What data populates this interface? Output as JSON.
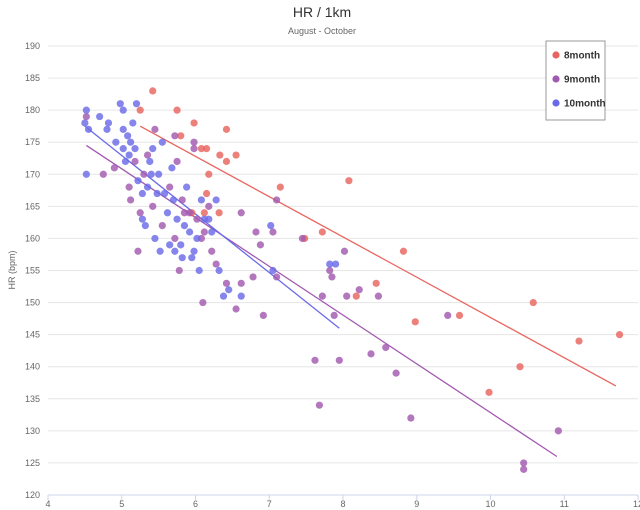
{
  "chart_data": {
    "type": "scatter",
    "title": "HR / 1km",
    "subtitle": "August - October",
    "xlabel": "",
    "ylabel": "HR (bpm)",
    "xlim": [
      4,
      12
    ],
    "ylim": [
      120,
      190
    ],
    "xticks": [
      4,
      5,
      6,
      7,
      8,
      9,
      10,
      11,
      12
    ],
    "yticks": [
      120,
      125,
      130,
      135,
      140,
      145,
      150,
      155,
      160,
      165,
      170,
      175,
      180,
      185,
      190
    ],
    "grid": true,
    "legend_position": "top-right",
    "series": [
      {
        "name": "8month",
        "color": "#e8655f",
        "points": [
          [
            5.25,
            180
          ],
          [
            5.42,
            183
          ],
          [
            5.75,
            180
          ],
          [
            5.8,
            176
          ],
          [
            5.98,
            178
          ],
          [
            6.08,
            174
          ],
          [
            6.15,
            174
          ],
          [
            6.33,
            173
          ],
          [
            6.42,
            177
          ],
          [
            6.42,
            172
          ],
          [
            6.55,
            173
          ],
          [
            6.18,
            170
          ],
          [
            6.15,
            167
          ],
          [
            5.95,
            164
          ],
          [
            6.12,
            164
          ],
          [
            6.32,
            164
          ],
          [
            7.15,
            168
          ],
          [
            8.08,
            169
          ],
          [
            7.48,
            160
          ],
          [
            7.72,
            161
          ],
          [
            8.18,
            151
          ],
          [
            8.45,
            153
          ],
          [
            8.82,
            158
          ],
          [
            8.98,
            147
          ],
          [
            9.58,
            148
          ],
          [
            9.98,
            136
          ],
          [
            10.4,
            140
          ],
          [
            10.58,
            150
          ],
          [
            11.2,
            144
          ],
          [
            11.75,
            145
          ]
        ],
        "trend": [
          [
            5.25,
            177.5
          ],
          [
            11.7,
            137
          ]
        ]
      },
      {
        "name": "9month",
        "color": "#a259b0",
        "points": [
          [
            4.52,
            179
          ],
          [
            4.75,
            170
          ],
          [
            4.9,
            171
          ],
          [
            5.1,
            168
          ],
          [
            5.12,
            166
          ],
          [
            5.18,
            172
          ],
          [
            5.25,
            164
          ],
          [
            5.22,
            158
          ],
          [
            5.3,
            170
          ],
          [
            5.35,
            173
          ],
          [
            5.42,
            165
          ],
          [
            5.45,
            177
          ],
          [
            5.55,
            162
          ],
          [
            5.65,
            168
          ],
          [
            5.75,
            172
          ],
          [
            5.72,
            176
          ],
          [
            5.72,
            160
          ],
          [
            5.78,
            155
          ],
          [
            5.82,
            166
          ],
          [
            5.85,
            164
          ],
          [
            5.92,
            164
          ],
          [
            5.98,
            175
          ],
          [
            5.98,
            174
          ],
          [
            6.02,
            163
          ],
          [
            6.08,
            160
          ],
          [
            6.12,
            161
          ],
          [
            6.18,
            165
          ],
          [
            6.22,
            158
          ],
          [
            6.28,
            156
          ],
          [
            6.1,
            150
          ],
          [
            6.42,
            153
          ],
          [
            6.55,
            149
          ],
          [
            6.62,
            164
          ],
          [
            6.62,
            153
          ],
          [
            6.78,
            154
          ],
          [
            6.82,
            161
          ],
          [
            6.88,
            159
          ],
          [
            6.92,
            148
          ],
          [
            7.05,
            161
          ],
          [
            7.1,
            166
          ],
          [
            7.1,
            154
          ],
          [
            7.45,
            160
          ],
          [
            7.62,
            141
          ],
          [
            7.68,
            134
          ],
          [
            7.72,
            151
          ],
          [
            7.82,
            155
          ],
          [
            7.85,
            154
          ],
          [
            7.88,
            148
          ],
          [
            7.95,
            141
          ],
          [
            8.02,
            158
          ],
          [
            8.05,
            151
          ],
          [
            8.22,
            152
          ],
          [
            8.38,
            142
          ],
          [
            8.48,
            151
          ],
          [
            8.58,
            143
          ],
          [
            8.72,
            139
          ],
          [
            8.92,
            132
          ],
          [
            9.42,
            148
          ],
          [
            10.45,
            125
          ],
          [
            10.45,
            124
          ],
          [
            10.92,
            130
          ]
        ],
        "trend": [
          [
            4.52,
            174.5
          ],
          [
            10.9,
            126
          ]
        ]
      },
      {
        "name": "10month",
        "color": "#6a6ae8",
        "points": [
          [
            4.5,
            178
          ],
          [
            4.52,
            180
          ],
          [
            4.55,
            177
          ],
          [
            4.52,
            170
          ],
          [
            4.7,
            179
          ],
          [
            4.8,
            177
          ],
          [
            4.82,
            178
          ],
          [
            4.92,
            175
          ],
          [
            4.98,
            181
          ],
          [
            5.02,
            180
          ],
          [
            5.02,
            177
          ],
          [
            5.02,
            174
          ],
          [
            5.08,
            176
          ],
          [
            5.05,
            172
          ],
          [
            5.1,
            173
          ],
          [
            5.12,
            175
          ],
          [
            5.15,
            178
          ],
          [
            5.18,
            174
          ],
          [
            5.2,
            181
          ],
          [
            5.22,
            169
          ],
          [
            5.28,
            163
          ],
          [
            5.28,
            167
          ],
          [
            5.32,
            162
          ],
          [
            5.35,
            168
          ],
          [
            5.38,
            172
          ],
          [
            5.4,
            170
          ],
          [
            5.42,
            174
          ],
          [
            5.45,
            160
          ],
          [
            5.48,
            167
          ],
          [
            5.5,
            170
          ],
          [
            5.52,
            158
          ],
          [
            5.55,
            175
          ],
          [
            5.58,
            167
          ],
          [
            5.62,
            164
          ],
          [
            5.65,
            159
          ],
          [
            5.68,
            171
          ],
          [
            5.7,
            166
          ],
          [
            5.72,
            158
          ],
          [
            5.75,
            163
          ],
          [
            5.8,
            159
          ],
          [
            5.82,
            157
          ],
          [
            5.85,
            162
          ],
          [
            5.88,
            168
          ],
          [
            5.92,
            161
          ],
          [
            5.95,
            157
          ],
          [
            5.98,
            158
          ],
          [
            6.02,
            160
          ],
          [
            6.05,
            155
          ],
          [
            6.08,
            166
          ],
          [
            6.12,
            163
          ],
          [
            6.18,
            163
          ],
          [
            6.22,
            161
          ],
          [
            6.28,
            166
          ],
          [
            6.32,
            155
          ],
          [
            6.38,
            151
          ],
          [
            6.45,
            152
          ],
          [
            6.62,
            151
          ],
          [
            7.02,
            162
          ],
          [
            7.05,
            155
          ],
          [
            7.82,
            156
          ],
          [
            7.9,
            156
          ]
        ],
        "trend": [
          [
            4.5,
            177.5
          ],
          [
            7.95,
            146
          ]
        ]
      }
    ]
  }
}
